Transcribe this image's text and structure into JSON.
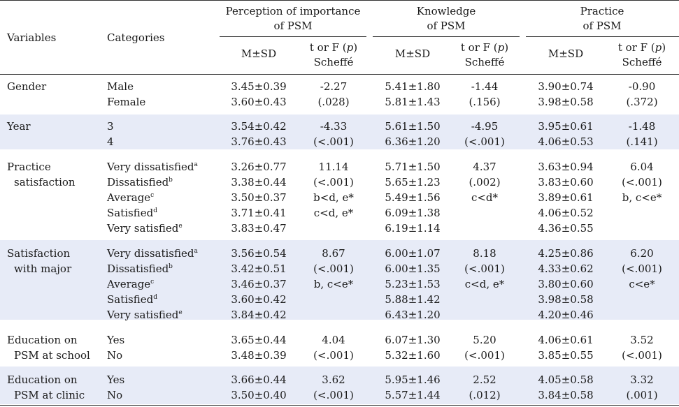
{
  "header": {
    "variables": "Variables",
    "categories": "Categories",
    "groups": [
      {
        "line1": "Perception of importance",
        "line2": "of PSM"
      },
      {
        "line1": "Knowledge",
        "line2": "of PSM"
      },
      {
        "line1": "Practice",
        "line2": "of PSM"
      }
    ],
    "sub_msd": "M±SD",
    "sub_stat_pre": "t or F (",
    "sub_stat_p": "p",
    "sub_stat_post": ")",
    "sub_scheffe": "Scheffé"
  },
  "rows": [
    {
      "var": [
        "Gender"
      ],
      "cats": [
        "Male",
        "Female"
      ],
      "sups": [
        "",
        ""
      ],
      "g": [
        {
          "msd": [
            "3.45±0.39",
            "3.60±0.43"
          ],
          "stat": [
            "-2.27",
            "(.028)"
          ]
        },
        {
          "msd": [
            "5.41±1.80",
            "5.81±1.43"
          ],
          "stat": [
            "-1.44",
            "(.156)"
          ]
        },
        {
          "msd": [
            "3.90±0.74",
            "3.98±0.58"
          ],
          "stat": [
            "-0.90",
            "(.372)"
          ]
        }
      ]
    },
    {
      "var": [
        "Year"
      ],
      "cats": [
        "3",
        "4"
      ],
      "sups": [
        "",
        ""
      ],
      "g": [
        {
          "msd": [
            "3.54±0.42",
            "3.76±0.43"
          ],
          "stat": [
            "-4.33",
            "(<.001)"
          ]
        },
        {
          "msd": [
            "5.61±1.50",
            "6.36±1.20"
          ],
          "stat": [
            "-4.95",
            "(<.001)"
          ]
        },
        {
          "msd": [
            "3.95±0.61",
            "4.06±0.53"
          ],
          "stat": [
            "-1.48",
            "(.141)"
          ]
        }
      ]
    },
    {
      "var": [
        "Practice",
        "satisfaction"
      ],
      "cats": [
        "Very dissatisfied",
        "Dissatisfied",
        "Average",
        "Satisfied",
        "Very satisfied"
      ],
      "sups": [
        "a",
        "b",
        "c",
        "d",
        "e"
      ],
      "g": [
        {
          "msd": [
            "3.26±0.77",
            "3.38±0.44",
            "3.50±0.37",
            "3.71±0.41",
            "3.83±0.47"
          ],
          "stat": [
            "11.14",
            "(<.001)",
            "b<d, e*",
            "c<d, e*"
          ]
        },
        {
          "msd": [
            "5.71±1.50",
            "5.65±1.23",
            "5.49±1.56",
            "6.09±1.38",
            "6.19±1.14"
          ],
          "stat": [
            "4.37",
            "(.002)",
            "c<d*"
          ]
        },
        {
          "msd": [
            "3.63±0.94",
            "3.83±0.60",
            "3.89±0.61",
            "4.06±0.52",
            "4.36±0.55"
          ],
          "stat": [
            "6.04",
            "(<.001)",
            "b, c<e*"
          ]
        }
      ]
    },
    {
      "var": [
        "Satisfaction",
        "with major"
      ],
      "cats": [
        "Very dissatisfied",
        "Dissatisfied",
        "Average",
        "Satisfied",
        "Very satisfied"
      ],
      "sups": [
        "a",
        "b",
        "c",
        "d",
        "e"
      ],
      "g": [
        {
          "msd": [
            "3.56±0.54",
            "3.42±0.51",
            "3.46±0.37",
            "3.60±0.42",
            "3.84±0.42"
          ],
          "stat": [
            "8.67",
            "(<.001)",
            "b, c<e*"
          ]
        },
        {
          "msd": [
            "6.00±1.07",
            "6.00±1.35",
            "5.23±1.53",
            "5.88±1.42",
            "6.43±1.20"
          ],
          "stat": [
            "8.18",
            "(<.001)",
            "c<d, e*"
          ]
        },
        {
          "msd": [
            "4.25±0.86",
            "4.33±0.62",
            "3.80±0.60",
            "3.98±0.58",
            "4.20±0.46"
          ],
          "stat": [
            "6.20",
            "(<.001)",
            "c<e*"
          ]
        }
      ]
    },
    {
      "var": [
        "Education on",
        "PSM at school"
      ],
      "cats": [
        "Yes",
        "No"
      ],
      "sups": [
        "",
        ""
      ],
      "g": [
        {
          "msd": [
            "3.65±0.44",
            "3.48±0.39"
          ],
          "stat": [
            "4.04",
            "(<.001)"
          ]
        },
        {
          "msd": [
            "6.07±1.30",
            "5.32±1.60"
          ],
          "stat": [
            "5.20",
            "(<.001)"
          ]
        },
        {
          "msd": [
            "4.06±0.61",
            "3.85±0.55"
          ],
          "stat": [
            "3.52",
            "(<.001)"
          ]
        }
      ]
    },
    {
      "var": [
        "Education on",
        "PSM at clinic"
      ],
      "cats": [
        "Yes",
        "No"
      ],
      "sups": [
        "",
        ""
      ],
      "g": [
        {
          "msd": [
            "3.66±0.44",
            "3.50±0.40"
          ],
          "stat": [
            "3.62",
            "(<.001)"
          ]
        },
        {
          "msd": [
            "5.95±1.46",
            "5.57±1.44"
          ],
          "stat": [
            "2.52",
            "(.012)"
          ]
        },
        {
          "msd": [
            "4.05±0.58",
            "3.84±0.58"
          ],
          "stat": [
            "3.32",
            "(.001)"
          ]
        }
      ]
    }
  ]
}
